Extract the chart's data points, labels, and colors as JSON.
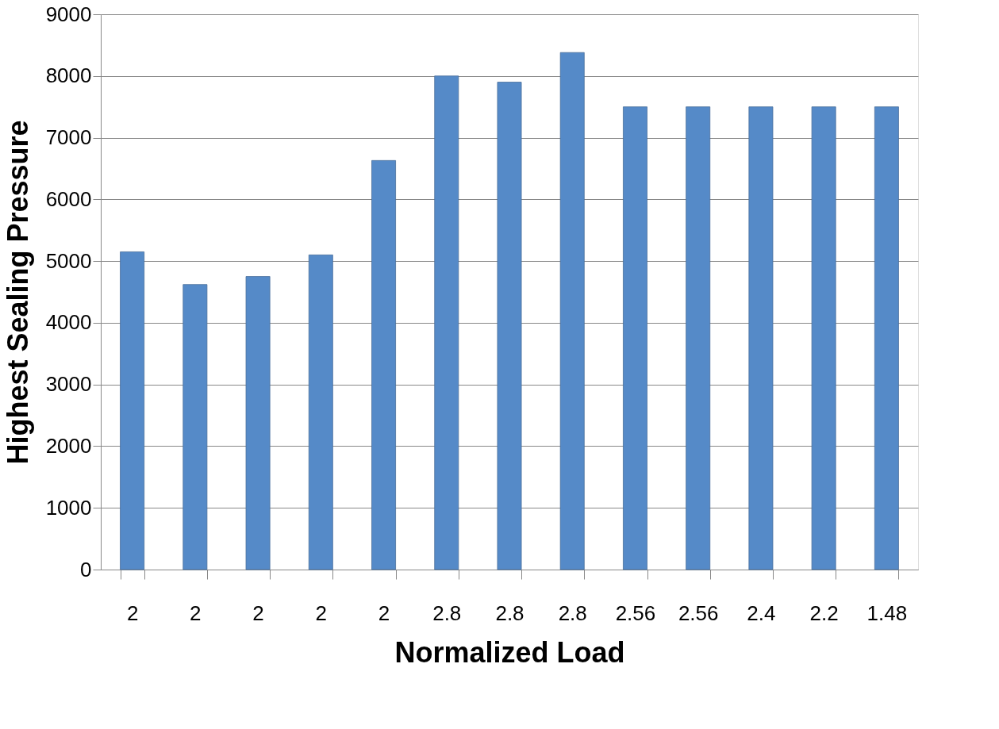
{
  "chart_data": {
    "type": "bar",
    "xlabel": "Normalized Load",
    "ylabel": "Highest Sealing Pressure",
    "categories": [
      "2",
      "2",
      "2",
      "2",
      "2",
      "2.8",
      "2.8",
      "2.8",
      "2.56",
      "2.56",
      "2.4",
      "2.2",
      "1.48"
    ],
    "values": [
      5150,
      4620,
      4750,
      5100,
      6630,
      8000,
      7900,
      8380,
      7500,
      7500,
      7500,
      7500,
      7500
    ],
    "color": "#558ac8",
    "ylim": [
      0,
      9000
    ],
    "yticks": [
      0,
      1000,
      2000,
      3000,
      4000,
      5000,
      6000,
      7000,
      8000,
      9000
    ],
    "grid": "y"
  }
}
